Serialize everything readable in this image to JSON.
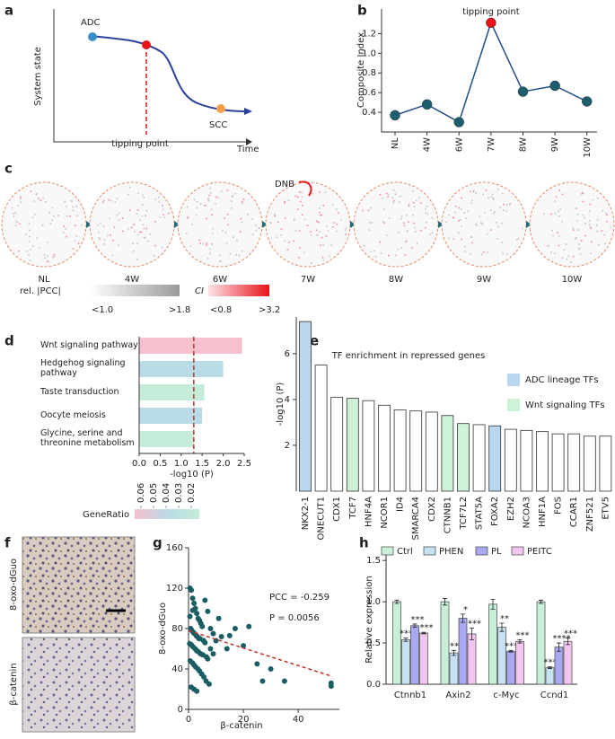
{
  "chart_data": [
    {
      "panel": "a",
      "type": "schematic",
      "ylabel": "System state",
      "xlabel": "Time",
      "labels": [
        "ADC",
        "SCC"
      ],
      "annotation": "tipping point"
    },
    {
      "panel": "b",
      "type": "line",
      "ylabel": "Composite Index",
      "annotation": "tipping point",
      "categories": [
        "NL",
        "4W",
        "6W",
        "7W",
        "8W",
        "9W",
        "10W"
      ],
      "values": [
        0.37,
        0.48,
        0.3,
        1.31,
        0.61,
        0.67,
        0.51
      ],
      "color": "#1f4e8c",
      "marker_color": "#1b5e6e",
      "highlight": 3,
      "highlight_color": "#e8141a",
      "ylim": [
        0.2,
        1.45
      ],
      "yticks": [
        0.4,
        0.6,
        0.8,
        {
          "value": 1.0,
          "label": "1.0"
        },
        1.2
      ]
    },
    {
      "panel": "c",
      "type": "micrograph",
      "labels": [
        "NL",
        "4W",
        "6W",
        "7W",
        "8W",
        "9W",
        "10W"
      ],
      "highlight": 3,
      "annotation": "DNB",
      "legend": [
        {
          "title": "rel. |PCC|",
          "min": "<1.0",
          "max": ">1.8"
        },
        {
          "title": "CI",
          "min": "<0.8",
          "max": ">3.2"
        }
      ]
    },
    {
      "panel": "d",
      "type": "hbar",
      "categories": [
        "Wnt signaling pathway",
        "Hedgehog signaling pathway",
        "Taste transduction",
        "Oocyte meiosis",
        "Glycine, serine and threonine metabolism"
      ],
      "values": [
        2.45,
        2.0,
        1.55,
        1.5,
        1.3
      ],
      "colors": [
        "#f6c0cf",
        "#b9dbe6",
        "#c5ecd9",
        "#b9dbe6",
        "#c5ecd9"
      ],
      "xlabel": "-log10 (P)",
      "xlim": [
        0,
        2.5
      ],
      "xticks": [
        {
          "value": 0,
          "label": "0.0"
        },
        0.5,
        {
          "value": 1,
          "label": "1.0"
        },
        1.5,
        {
          "value": 2,
          "label": "2.0"
        },
        2.5
      ],
      "threshold": 1.3,
      "threshold_color": "#b03a2e",
      "colorbar_title": "GeneRatio",
      "colorbar_ticks": [
        0.06,
        0.05,
        0.04,
        0.03,
        0.02
      ]
    },
    {
      "panel": "e",
      "type": "bar",
      "title": "TF enrichment in repressed genes",
      "ylabel": "-log10 (P)",
      "categories": [
        "NKX2-1",
        "ONECUT1",
        "CDX1",
        "TCF7",
        "HNF4A",
        "NCOR1",
        "ID4",
        "SMARCA4",
        "CDX2",
        "CTNNB1",
        "TCF7L2",
        "STAT5A",
        "FOXA2",
        "EZH2",
        "NCOA3",
        "HNF1A",
        "FOS",
        "CCAR1",
        "ZNF521",
        "ETV5"
      ],
      "values": [
        7.4,
        5.5,
        4.1,
        4.05,
        3.95,
        3.75,
        3.55,
        3.5,
        3.45,
        3.3,
        2.95,
        2.9,
        2.85,
        2.7,
        2.65,
        2.6,
        2.5,
        2.5,
        2.4,
        2.4
      ],
      "colors": [
        "#b9d7ef",
        "#ffffff",
        "#ffffff",
        "#cdf2d5",
        "#ffffff",
        "#ffffff",
        "#ffffff",
        "#ffffff",
        "#ffffff",
        "#cdf2d5",
        "#cdf2d5",
        "#ffffff",
        "#b9d7ef",
        "#ffffff",
        "#ffffff",
        "#ffffff",
        "#ffffff",
        "#ffffff",
        "#ffffff",
        "#ffffff"
      ],
      "legend": [
        {
          "name": "ADC lineage TFs",
          "color": "#b9d7ef"
        },
        {
          "name": "Wnt signaling TFs",
          "color": "#cdf2d5"
        }
      ],
      "ylim": [
        0,
        7.6
      ],
      "yticks": [
        2,
        4,
        6
      ]
    },
    {
      "panel": "f",
      "type": "histology",
      "labels": [
        "8-oxo-dGuo",
        "β-catenin"
      ]
    },
    {
      "panel": "g",
      "type": "scatter",
      "xlabel": "β-catenin",
      "ylabel": "8-oxo-dGuo",
      "annotations": [
        "PCC = -0.259",
        "P = 0.0056"
      ],
      "x": [
        0.5,
        1,
        1.5,
        2,
        2.5,
        3,
        3.5,
        4,
        4.5,
        5,
        0.8,
        1.2,
        1.8,
        2.2,
        2.8,
        3.2,
        3.8,
        4.2,
        5.5,
        6,
        0.4,
        1,
        1.6,
        2.4,
        3,
        3.6,
        4.4,
        5.2,
        6.5,
        7,
        0.6,
        1.4,
        2,
        2.6,
        3.4,
        4,
        4.8,
        5.6,
        6.4,
        7.5,
        1,
        2,
        3,
        0.5,
        1.5,
        8,
        9,
        10,
        11,
        12,
        14,
        15,
        17,
        20,
        22,
        25,
        27,
        30,
        35,
        52,
        52,
        8,
        9,
        6,
        7
      ],
      "y": [
        120,
        118,
        110,
        105,
        100,
        95,
        90,
        88,
        85,
        82,
        80,
        78,
        76,
        75,
        73,
        72,
        70,
        70,
        68,
        66,
        65,
        64,
        62,
        60,
        58,
        57,
        55,
        54,
        52,
        50,
        48,
        46,
        44,
        42,
        40,
        38,
        35,
        32,
        28,
        25,
        22,
        20,
        18,
        92,
        98,
        80,
        75,
        68,
        90,
        72,
        60,
        73,
        80,
        63,
        82,
        45,
        28,
        40,
        28,
        23,
        26,
        60,
        55,
        108,
        97
      ],
      "color": "#1a5e63",
      "trend": {
        "x": [
          0,
          52
        ],
        "y": [
          78,
          33
        ],
        "color": "#c0392b"
      },
      "xlim": [
        0,
        55
      ],
      "ylim": [
        0,
        160
      ],
      "xticks": [
        0,
        20,
        40
      ],
      "yticks": [
        0,
        40,
        80,
        120,
        160
      ]
    },
    {
      "panel": "h",
      "type": "grouped-bar",
      "ylabel": "Relative expression",
      "categories": [
        "Ctnnb1",
        "Axin2",
        "c-Myc",
        "Ccnd1"
      ],
      "series": [
        {
          "name": "Ctrl",
          "color": "#c8f0d8",
          "values": [
            1.0,
            1.0,
            0.97,
            1.0
          ],
          "errors": [
            0.02,
            0.04,
            0.06,
            0.02
          ]
        },
        {
          "name": "PHEN",
          "color": "#c6e2f2",
          "values": [
            0.54,
            0.38,
            0.69,
            0.2
          ],
          "errors": [
            0.02,
            0.03,
            0.05,
            0.01
          ],
          "stars": [
            "****",
            "***",
            "**",
            "****"
          ]
        },
        {
          "name": "PL",
          "color": "#a9a9f2",
          "values": [
            0.71,
            0.8,
            0.4,
            0.45
          ],
          "errors": [
            0.02,
            0.05,
            0.01,
            0.05
          ],
          "stars": [
            "***",
            "*",
            "****",
            "****"
          ]
        },
        {
          "name": "PEITC",
          "color": "#f2c6f0",
          "values": [
            0.62,
            0.61,
            0.52,
            0.52
          ],
          "errors": [
            0.01,
            0.07,
            0.02,
            0.04
          ],
          "stars": [
            "***",
            "***",
            "***",
            "***"
          ]
        }
      ],
      "ylim": [
        0,
        1.6
      ],
      "yticks": [
        {
          "value": 0,
          "label": "0.0"
        },
        0.5,
        {
          "value": 1,
          "label": "1.0"
        },
        1.5
      ]
    }
  ]
}
